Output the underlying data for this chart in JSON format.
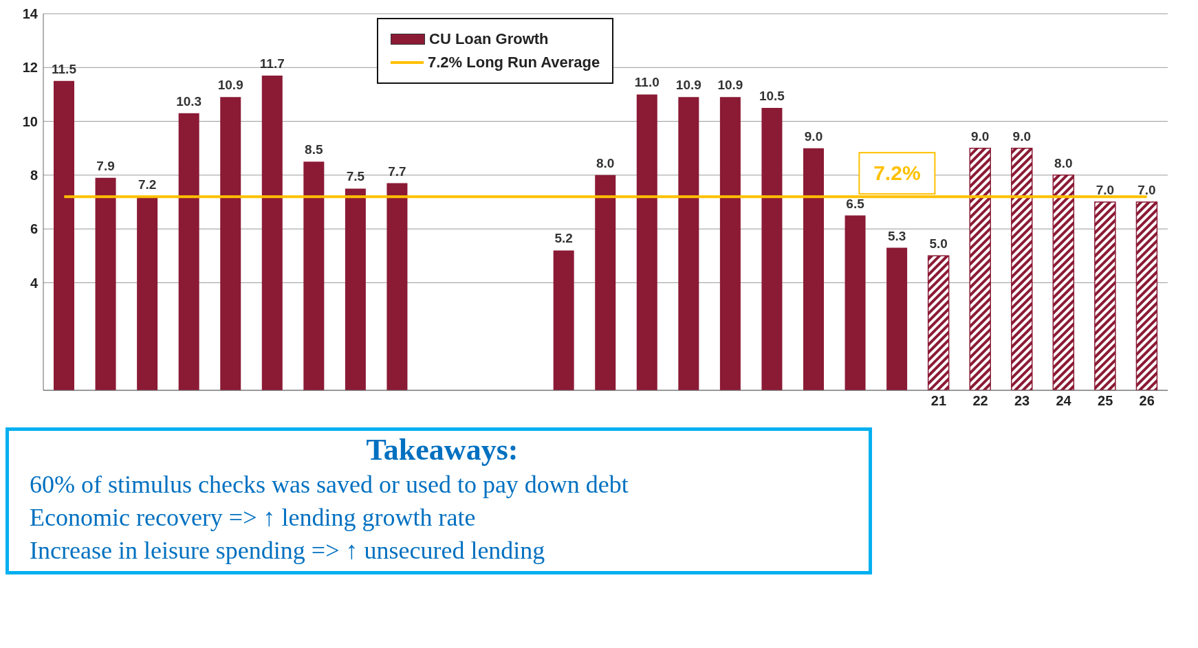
{
  "chart_data": {
    "type": "bar",
    "stacked": true,
    "categories": [
      null,
      null,
      null,
      null,
      null,
      null,
      null,
      null,
      null,
      null,
      null,
      null,
      null,
      null,
      null,
      null,
      null,
      null,
      null,
      null,
      null,
      "21",
      "22",
      "23",
      "24",
      "25",
      "26"
    ],
    "series": [
      {
        "name": "CU Loan Growth",
        "color": "#8b1a35",
        "values": [
          11.5,
          7.9,
          7.2,
          10.3,
          10.9,
          11.7,
          8.5,
          7.5,
          7.7,
          null,
          null,
          null,
          5.2,
          8.0,
          11.0,
          10.9,
          10.9,
          10.5,
          9.0,
          6.5,
          5.3,
          null,
          null,
          null,
          null,
          null,
          null
        ],
        "value_labels": [
          "11.5",
          "7.9",
          "7.2",
          "10.3",
          "10.9",
          "11.7",
          "8.5",
          "7.5",
          "7.7",
          null,
          null,
          null,
          "5.2",
          "8.0",
          "11.0",
          "10.9",
          "10.9",
          "10.5",
          "9.0",
          "6.5",
          "5.3",
          null,
          null,
          null,
          null,
          null,
          null
        ]
      },
      {
        "color": "#8b1a35",
        "values": [
          null,
          null,
          null,
          null,
          null,
          null,
          null,
          null,
          null,
          null,
          null,
          null,
          null,
          null,
          null,
          null,
          null,
          null,
          null,
          null,
          null,
          5.0,
          9.0,
          9.0,
          8.0,
          7.0,
          7.0
        ],
        "value_labels": [
          null,
          null,
          null,
          null,
          null,
          null,
          null,
          null,
          null,
          null,
          null,
          null,
          null,
          null,
          null,
          null,
          null,
          null,
          null,
          null,
          null,
          "5.0",
          "9.0",
          "9.0",
          "8.0",
          "7.0",
          "7.0"
        ]
      },
      {
        "type": "line",
        "name": "7.2% Long Run Average",
        "color": "#ffc000",
        "values": [
          7.2,
          7.2,
          7.2,
          7.2,
          7.2,
          7.2,
          7.2,
          7.2,
          7.2,
          7.2,
          7.2,
          7.2,
          7.2,
          7.2,
          7.2,
          7.2,
          7.2,
          7.2,
          7.2,
          7.2,
          7.2,
          7.2,
          7.2,
          7.2,
          7.2,
          7.2,
          7.2
        ]
      }
    ],
    "ylim": [
      0,
      14
    ],
    "yticks": [
      4,
      6,
      8,
      10,
      12,
      14
    ],
    "grid": "y",
    "legend": "top",
    "marker": "none",
    "line_style": "solid",
    "annotations": [
      {
        "text": "7.2%",
        "y": 7.2
      },
      "Takeaways:",
      "60% of stimulus checks was saved or used to pay down debt",
      "Economic recovery => ↑ lending growth rate",
      "Increase in leisure spending => ↑ unsecured lending"
    ]
  }
}
